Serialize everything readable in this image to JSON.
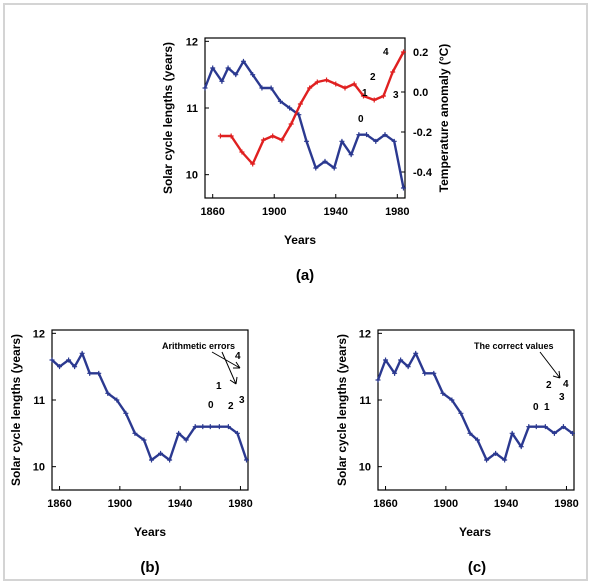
{
  "panel_labels": {
    "a": "(a)",
    "b": "(b)",
    "c": "(c)"
  },
  "annotations": {
    "b": "Arithmetic errors",
    "c": "The correct values"
  },
  "point_labels": {
    "a": [
      "0",
      "1",
      "2",
      "3",
      "4"
    ],
    "b": [
      "0",
      "1",
      "2",
      "3",
      "4"
    ],
    "c": [
      "0",
      "1",
      "2",
      "3",
      "4"
    ]
  },
  "colors": {
    "solar_series": "#2b3990",
    "temperature_series": "#e02020",
    "axes": "#000000",
    "frame": "#d4d4d4"
  },
  "chart_data": [
    {
      "type": "line",
      "panel": "a",
      "xlabel": "Years",
      "ylabel": "Solar cycle lengths (years)",
      "y2label": "Temperature anomaly (°C)",
      "xlim": [
        1855,
        1985
      ],
      "ylim": [
        12.05,
        9.65
      ],
      "y2lim": [
        -0.53,
        0.27
      ],
      "xticks": [
        1860,
        1900,
        1940,
        1980
      ],
      "yticks": [
        10,
        11,
        12
      ],
      "y2ticks": [
        -0.4,
        -0.2,
        0.0,
        0.2
      ],
      "y2ticklabels": [
        "-0.4",
        "-0.2",
        "0.0",
        "0.2"
      ],
      "series": [
        {
          "axis": "left",
          "color": "#2b3990",
          "x": [
            1855,
            1860,
            1866,
            1870,
            1875,
            1880,
            1886,
            1892,
            1898,
            1904,
            1910,
            1916,
            1921,
            1927,
            1933,
            1939,
            1944,
            1950,
            1955,
            1960,
            1966,
            1972,
            1978,
            1984
          ],
          "y": [
            11.3,
            11.6,
            11.4,
            11.6,
            11.5,
            11.7,
            11.5,
            11.3,
            11.3,
            11.1,
            11.0,
            10.9,
            10.5,
            10.1,
            10.2,
            10.1,
            10.5,
            10.3,
            10.6,
            10.6,
            10.5,
            10.6,
            10.5,
            9.8
          ]
        },
        {
          "axis": "right",
          "color": "#e02020",
          "x": [
            1865,
            1872,
            1879,
            1886,
            1893,
            1899,
            1905,
            1911,
            1917,
            1923,
            1928,
            1934,
            1940,
            1946,
            1952,
            1958,
            1965,
            1971,
            1977,
            1984
          ],
          "y": [
            -0.22,
            -0.22,
            -0.3,
            -0.36,
            -0.24,
            -0.22,
            -0.24,
            -0.16,
            -0.06,
            0.02,
            0.05,
            0.06,
            0.04,
            0.02,
            0.04,
            -0.02,
            -0.04,
            -0.02,
            0.1,
            0.2
          ]
        }
      ]
    },
    {
      "type": "line",
      "panel": "b",
      "xlabel": "Years",
      "ylabel": "Solar cycle lengths (years)",
      "xlim": [
        1855,
        1985
      ],
      "ylim": [
        12.05,
        9.65
      ],
      "xticks": [
        1860,
        1900,
        1940,
        1980
      ],
      "yticks": [
        10,
        11,
        12
      ],
      "series": [
        {
          "color": "#2b3990",
          "x": [
            1855,
            1860,
            1866,
            1870,
            1875,
            1880,
            1886,
            1892,
            1898,
            1904,
            1910,
            1916,
            1921,
            1927,
            1933,
            1939,
            1944,
            1950,
            1955,
            1960,
            1966,
            1972,
            1978,
            1984
          ],
          "y": [
            11.6,
            11.5,
            11.6,
            11.5,
            11.7,
            11.4,
            11.4,
            11.1,
            11.0,
            10.8,
            10.5,
            10.4,
            10.1,
            10.2,
            10.1,
            10.5,
            10.4,
            10.6,
            10.6,
            10.6,
            10.6,
            10.6,
            10.5,
            10.1
          ]
        }
      ]
    },
    {
      "type": "line",
      "panel": "c",
      "xlabel": "Years",
      "ylabel": "Solar cycle lengths (years)",
      "xlim": [
        1855,
        1985
      ],
      "ylim": [
        12.05,
        9.65
      ],
      "xticks": [
        1860,
        1900,
        1940,
        1980
      ],
      "yticks": [
        10,
        11,
        12
      ],
      "series": [
        {
          "color": "#2b3990",
          "x": [
            1855,
            1860,
            1866,
            1870,
            1875,
            1880,
            1886,
            1892,
            1898,
            1904,
            1910,
            1916,
            1921,
            1927,
            1933,
            1939,
            1944,
            1950,
            1955,
            1960,
            1966,
            1972,
            1978,
            1984
          ],
          "y": [
            11.3,
            11.6,
            11.4,
            11.6,
            11.5,
            11.7,
            11.4,
            11.4,
            11.1,
            11.0,
            10.8,
            10.5,
            10.4,
            10.1,
            10.2,
            10.1,
            10.5,
            10.3,
            10.6,
            10.6,
            10.6,
            10.5,
            10.6,
            10.5
          ]
        }
      ]
    }
  ]
}
